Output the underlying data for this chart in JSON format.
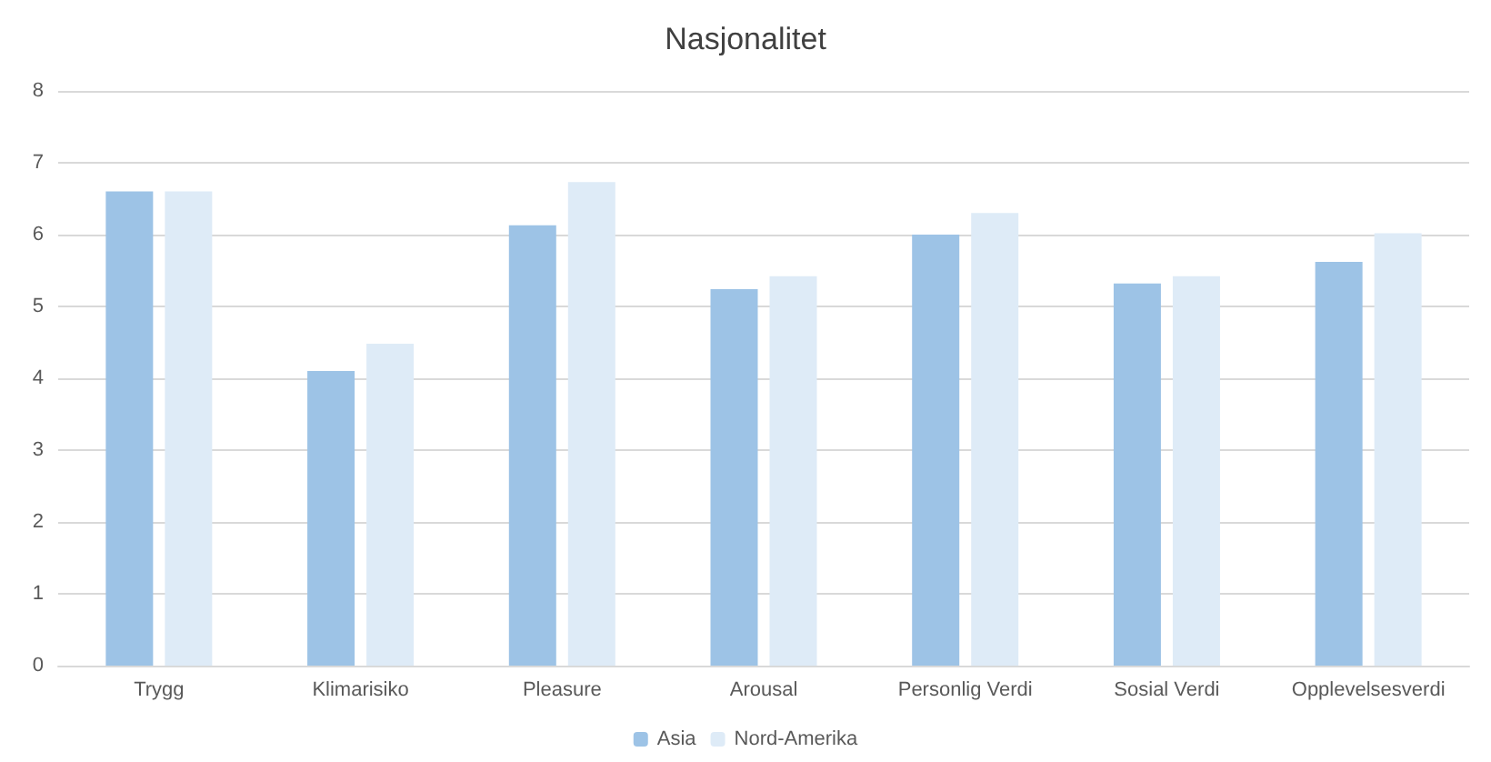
{
  "chart_data": {
    "type": "bar",
    "title": "Nasjonalitet",
    "categories": [
      "Trygg",
      "Klimarisiko",
      "Pleasure",
      "Arousal",
      "Personlig Verdi",
      "Sosial Verdi",
      "Opplevelsesverdi"
    ],
    "series": [
      {
        "name": "Asia",
        "color": "#9dc3e6",
        "values": [
          6.6,
          4.1,
          6.13,
          5.24,
          6.0,
          5.32,
          5.62
        ]
      },
      {
        "name": "Nord-Amerika",
        "color": "#deebf7",
        "values": [
          6.6,
          4.48,
          6.73,
          5.42,
          6.3,
          5.42,
          6.02
        ]
      }
    ],
    "ylim": [
      0,
      8
    ],
    "yticks": [
      0,
      1,
      2,
      3,
      4,
      5,
      6,
      7,
      8
    ],
    "grid": "y",
    "legend": "bottom"
  }
}
